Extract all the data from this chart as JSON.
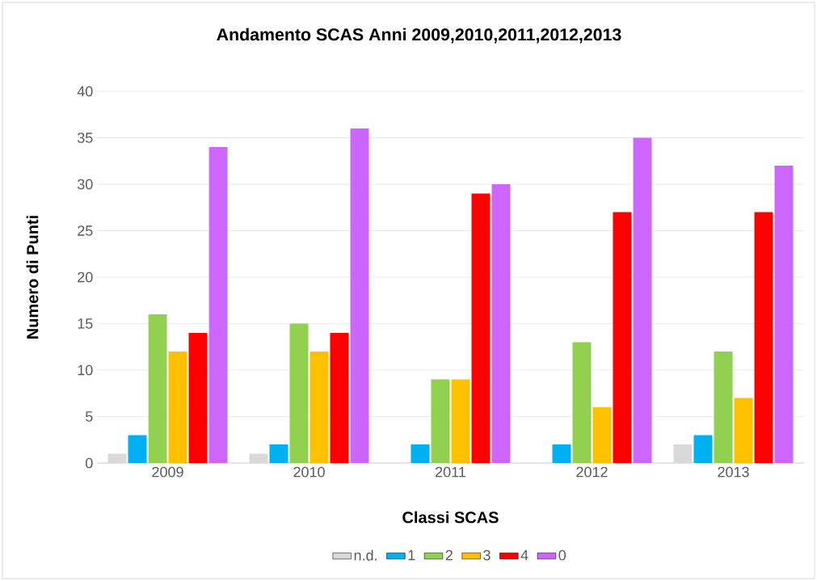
{
  "chart_data": {
    "type": "bar",
    "title": "Andamento SCAS Anni 2009,2010,2011,2012,2013",
    "xlabel": "Classi SCAS",
    "ylabel": "Numero di Punti",
    "categories": [
      "2009",
      "2010",
      "2011",
      "2012",
      "2013"
    ],
    "series": [
      {
        "name": "n.d.",
        "color": "#d9d9d9",
        "values": [
          1,
          1,
          0,
          0,
          2
        ]
      },
      {
        "name": "1",
        "color": "#00b0f0",
        "values": [
          3,
          2,
          2,
          2,
          3
        ]
      },
      {
        "name": "2",
        "color": "#92d050",
        "values": [
          16,
          15,
          9,
          13,
          12
        ]
      },
      {
        "name": "3",
        "color": "#ffc000",
        "values": [
          12,
          12,
          9,
          6,
          7
        ]
      },
      {
        "name": "4",
        "color": "#ff0000",
        "values": [
          14,
          14,
          29,
          27,
          27
        ]
      },
      {
        "name": "0",
        "color": "#cc66ff",
        "values": [
          34,
          36,
          30,
          35,
          32
        ]
      }
    ],
    "ylim": [
      0,
      40
    ],
    "yticks": [
      0,
      5,
      10,
      15,
      20,
      25,
      30,
      35,
      40
    ],
    "grid": "y",
    "legend": "bottom"
  }
}
